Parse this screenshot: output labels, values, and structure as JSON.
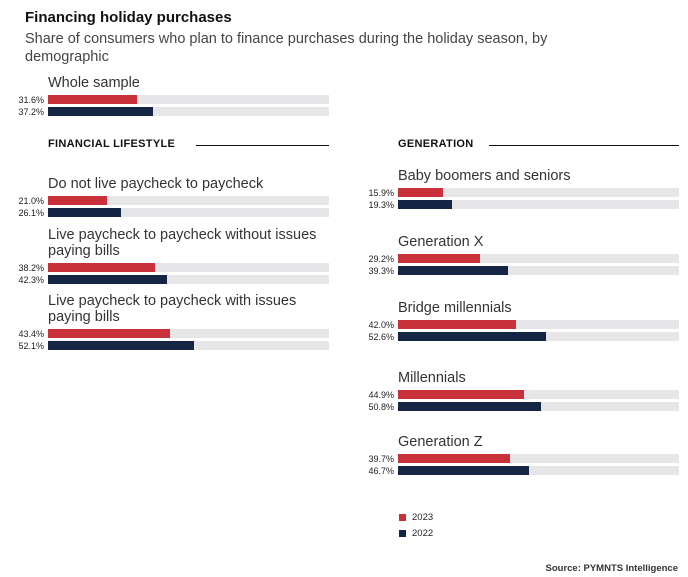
{
  "title": "Financing holiday purchases",
  "subtitle": "Share of consumers who plan to finance purchases during the holiday season, by demographic",
  "source": "Source: PYMNTS Intelligence",
  "colors": {
    "y2023": "#c8303a",
    "y2022": "#152544",
    "track": "#e6e6e8"
  },
  "chart_data": {
    "type": "bar",
    "orientation": "horizontal",
    "value_unit": "percent",
    "xlim": [
      0,
      100
    ],
    "legend": [
      "2023",
      "2022"
    ],
    "panels": [
      {
        "heading": "",
        "groups": [
          {
            "label": "Whole sample",
            "values": [
              31.6,
              37.2
            ],
            "labels": [
              "31.6%",
              "37.2%"
            ]
          }
        ]
      },
      {
        "heading": "FINANCIAL LIFESTYLE",
        "groups": [
          {
            "label": "Do not live paycheck to paycheck",
            "values": [
              21.0,
              26.1
            ],
            "labels": [
              "21.0%",
              "26.1%"
            ]
          },
          {
            "label": "Live paycheck to paycheck without issues paying bills",
            "values": [
              38.2,
              42.3
            ],
            "labels": [
              "38.2%",
              "42.3%"
            ]
          },
          {
            "label": "Live paycheck to paycheck with issues paying bills",
            "values": [
              43.4,
              52.1
            ],
            "labels": [
              "43.4%",
              "52.1%"
            ]
          }
        ]
      },
      {
        "heading": "GENERATION",
        "groups": [
          {
            "label": "Baby boomers and seniors",
            "values": [
              15.9,
              19.3
            ],
            "labels": [
              "15.9%",
              "19.3%"
            ]
          },
          {
            "label": "Generation X",
            "values": [
              29.2,
              39.3
            ],
            "labels": [
              "29.2%",
              "39.3%"
            ]
          },
          {
            "label": "Bridge millennials",
            "values": [
              42.0,
              52.6
            ],
            "labels": [
              "42.0%",
              "52.6%"
            ]
          },
          {
            "label": "Millennials",
            "values": [
              44.9,
              50.8
            ],
            "labels": [
              "44.9%",
              "50.8%"
            ]
          },
          {
            "label": "Generation Z",
            "values": [
              39.7,
              46.7
            ],
            "labels": [
              "39.7%",
              "46.7%"
            ]
          }
        ]
      }
    ]
  }
}
